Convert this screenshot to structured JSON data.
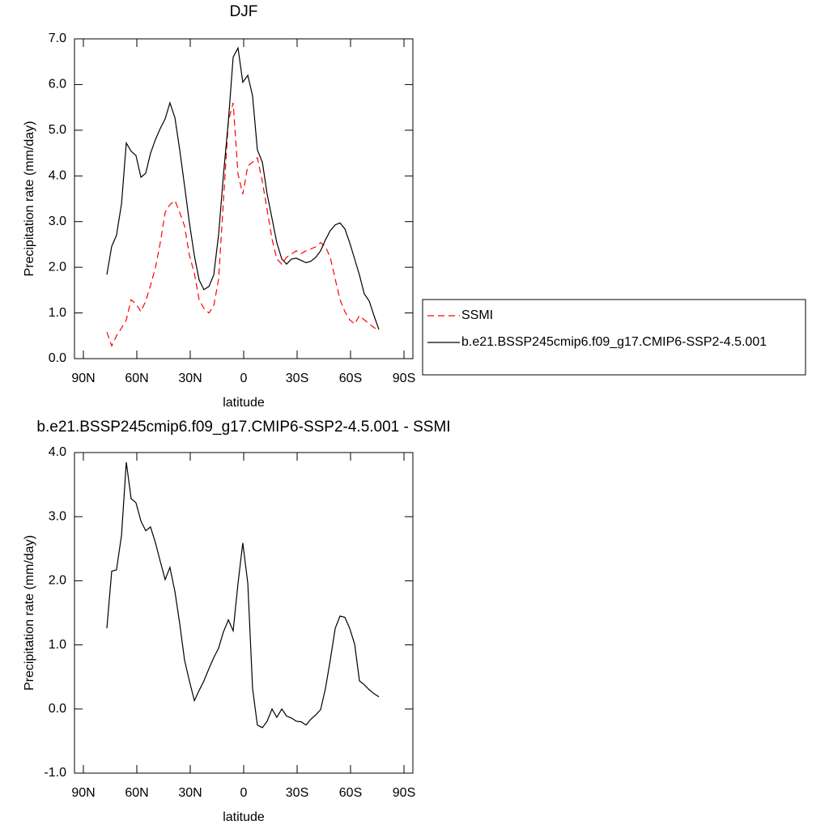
{
  "chart_data": [
    {
      "type": "line",
      "title": "DJF",
      "xlabel": "latitude",
      "ylabel": "Precipitation rate (mm/day)",
      "x": [
        76.8,
        74.1,
        71.4,
        68.6,
        65.9,
        63.2,
        60.5,
        57.7,
        55.0,
        52.3,
        49.5,
        46.8,
        44.1,
        41.4,
        38.6,
        35.9,
        33.2,
        30.5,
        27.7,
        25.0,
        22.3,
        19.5,
        16.8,
        14.1,
        11.4,
        8.6,
        5.9,
        3.2,
        0.5,
        -2.3,
        -5.0,
        -7.7,
        -10.5,
        -13.2,
        -15.9,
        -18.6,
        -21.4,
        -24.1,
        -26.8,
        -29.5,
        -32.3,
        -35.0,
        -37.7,
        -40.5,
        -43.2,
        -45.9,
        -48.6,
        -51.4,
        -54.1,
        -56.8,
        -59.5,
        -62.3,
        -65.0,
        -67.7,
        -70.5,
        -73.2,
        -75.9
      ],
      "series": [
        {
          "name": "SSMI",
          "color": "#ff0000",
          "line_style": "dashed",
          "values": [
            0.58,
            0.28,
            0.5,
            0.67,
            0.85,
            1.29,
            1.2,
            1.03,
            1.26,
            1.6,
            2.0,
            2.54,
            3.2,
            3.37,
            3.46,
            3.2,
            2.9,
            2.27,
            1.86,
            1.29,
            1.1,
            1.0,
            1.15,
            1.74,
            3.42,
            5.2,
            5.6,
            4.04,
            3.6,
            4.22,
            4.3,
            4.4,
            3.87,
            3.25,
            2.62,
            2.18,
            2.07,
            2.22,
            2.29,
            2.36,
            2.3,
            2.36,
            2.4,
            2.45,
            2.54,
            2.45,
            2.22,
            1.74,
            1.29,
            1.03,
            0.85,
            0.76,
            0.94,
            0.85,
            0.76,
            0.68,
            0.6
          ]
        },
        {
          "name": "b.e21.BSSP245cmip6.f09_g17.CMIP6-SSP2-4.5.001",
          "color": "#000000",
          "line_style": "solid",
          "values": [
            1.84,
            2.46,
            2.7,
            3.39,
            4.72,
            4.54,
            4.45,
            3.97,
            4.06,
            4.49,
            4.8,
            5.04,
            5.25,
            5.6,
            5.27,
            4.57,
            3.78,
            2.98,
            2.25,
            1.72,
            1.51,
            1.58,
            1.83,
            2.71,
            4.0,
            5.2,
            6.6,
            6.8,
            6.05,
            6.2,
            5.75,
            4.57,
            4.3,
            3.6,
            3.07,
            2.54,
            2.18,
            2.07,
            2.18,
            2.2,
            2.15,
            2.1,
            2.13,
            2.22,
            2.36,
            2.6,
            2.8,
            2.93,
            2.97,
            2.84,
            2.54,
            2.18,
            1.83,
            1.42,
            1.26,
            0.94,
            0.64
          ]
        }
      ],
      "xlim": [
        95,
        -95
      ],
      "xticks": [
        {
          "value": 90,
          "label": "90N"
        },
        {
          "value": 60,
          "label": "60N"
        },
        {
          "value": 30,
          "label": "30N"
        },
        0,
        {
          "value": -30,
          "label": "30S"
        },
        {
          "value": -60,
          "label": "60S"
        },
        {
          "value": -90,
          "label": "90S"
        }
      ],
      "ylim": [
        0,
        7
      ],
      "yticks": [
        {
          "value": 0,
          "label": "0.0"
        },
        {
          "value": 1,
          "label": "1.0"
        },
        {
          "value": 2,
          "label": "2.0"
        },
        {
          "value": 3,
          "label": "3.0"
        },
        {
          "value": 4,
          "label": "4.0"
        },
        {
          "value": 5,
          "label": "5.0"
        },
        {
          "value": 6,
          "label": "6.0"
        },
        {
          "value": 7,
          "label": "7.0"
        }
      ],
      "legend": "outside-right"
    },
    {
      "type": "line",
      "title": "b.e21.BSSP245cmip6.f09_g17.CMIP6-SSP2-4.5.001 - SSMI",
      "xlabel": "latitude",
      "ylabel": "Precipitation rate (mm/day)",
      "x": [
        76.8,
        74.1,
        71.4,
        68.6,
        65.9,
        63.2,
        60.5,
        57.7,
        55.0,
        52.3,
        49.5,
        46.8,
        44.1,
        41.4,
        38.6,
        35.9,
        33.2,
        30.5,
        27.7,
        25.0,
        22.3,
        19.5,
        16.8,
        14.1,
        11.4,
        8.6,
        5.9,
        3.2,
        0.5,
        -2.3,
        -5.0,
        -7.7,
        -10.5,
        -13.2,
        -15.9,
        -18.6,
        -21.4,
        -24.1,
        -26.8,
        -29.5,
        -32.3,
        -35.0,
        -37.7,
        -40.5,
        -43.2,
        -45.9,
        -48.6,
        -51.4,
        -54.1,
        -56.8,
        -59.5,
        -62.3,
        -65.0,
        -67.7,
        -70.5,
        -73.2,
        -75.9
      ],
      "series": [
        {
          "color": "#000000",
          "line_style": "solid",
          "values": [
            1.26,
            2.15,
            2.17,
            2.71,
            3.85,
            3.28,
            3.22,
            2.93,
            2.78,
            2.84,
            2.59,
            2.3,
            2.02,
            2.21,
            1.83,
            1.33,
            0.76,
            0.44,
            0.13,
            0.29,
            0.44,
            0.63,
            0.8,
            0.95,
            1.2,
            1.39,
            1.22,
            1.96,
            2.59,
            1.96,
            0.32,
            -0.25,
            -0.29,
            -0.19,
            0.0,
            -0.13,
            0.0,
            -0.11,
            -0.14,
            -0.19,
            -0.2,
            -0.25,
            -0.16,
            -0.09,
            -0.01,
            0.32,
            0.76,
            1.26,
            1.45,
            1.43,
            1.26,
            1.01,
            0.44,
            0.38,
            0.3,
            0.24,
            0.19
          ]
        }
      ],
      "xlim": [
        95,
        -95
      ],
      "xticks": [
        {
          "value": 90,
          "label": "90N"
        },
        {
          "value": 60,
          "label": "60N"
        },
        {
          "value": 30,
          "label": "30N"
        },
        0,
        {
          "value": -30,
          "label": "30S"
        },
        {
          "value": -60,
          "label": "60S"
        },
        {
          "value": -90,
          "label": "90S"
        }
      ],
      "ylim": [
        -1,
        4
      ],
      "yticks": [
        {
          "value": -1,
          "label": "-1.0"
        },
        {
          "value": 0,
          "label": "0.0"
        },
        {
          "value": 1,
          "label": "1.0"
        },
        {
          "value": 2,
          "label": "2.0"
        },
        {
          "value": 3,
          "label": "3.0"
        },
        {
          "value": 4,
          "label": "4.0"
        }
      ]
    }
  ]
}
